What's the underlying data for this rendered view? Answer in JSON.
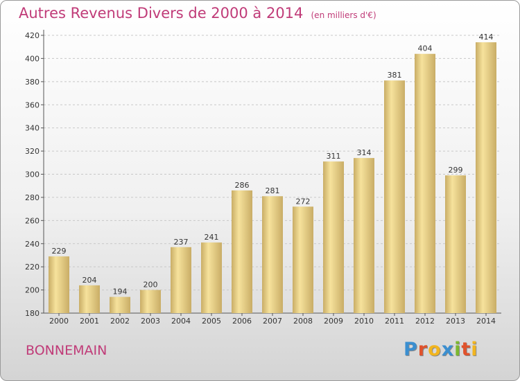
{
  "header": {
    "title": "Autres Revenus Divers de 2000 à 2014",
    "subtitle": "(en milliers d'€)"
  },
  "footer": {
    "location": "BONNEMAIN",
    "brand": "Proxiti"
  },
  "colors": {
    "title": "#c03b78",
    "bar_light": "#f6e29c",
    "bar_dark": "#c9ad66",
    "brand_letters": [
      "#3b8fd0",
      "#e0522c",
      "#f2b51e",
      "#3b8fd0",
      "#7cb82f",
      "#e0522c",
      "#f2b51e"
    ]
  },
  "chart_data": {
    "type": "bar",
    "categories": [
      "2000",
      "2001",
      "2002",
      "2003",
      "2004",
      "2005",
      "2006",
      "2007",
      "2008",
      "2009",
      "2010",
      "2011",
      "2012",
      "2013",
      "2014"
    ],
    "values": [
      229,
      204,
      194,
      200,
      237,
      241,
      286,
      281,
      272,
      311,
      314,
      381,
      404,
      299,
      414
    ],
    "title": "Autres Revenus Divers de 2000 à 2014",
    "xlabel": "",
    "ylabel": "",
    "ylim": [
      180,
      420
    ],
    "yticks": [
      180,
      200,
      220,
      240,
      260,
      280,
      300,
      320,
      340,
      360,
      380,
      400,
      420
    ],
    "grid": true,
    "data_labels": true
  }
}
